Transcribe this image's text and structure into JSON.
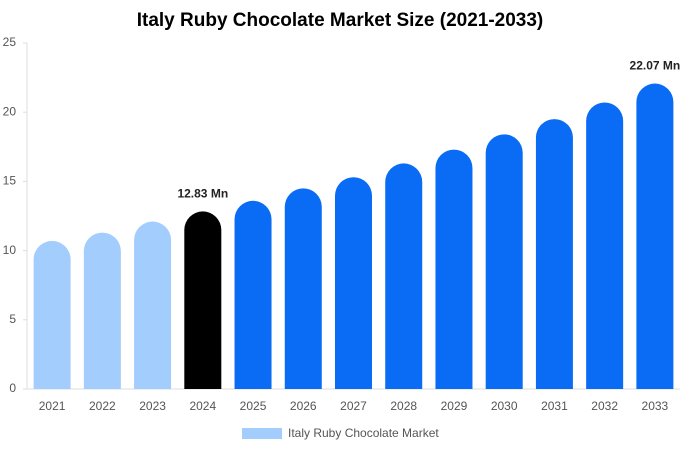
{
  "chart_data": {
    "type": "bar",
    "title": "Italy Ruby Chocolate Market Size (2021-2033)",
    "categories": [
      "2021",
      "2022",
      "2023",
      "2024",
      "2025",
      "2026",
      "2027",
      "2028",
      "2029",
      "2030",
      "2031",
      "2032",
      "2033"
    ],
    "series": [
      {
        "name": "Italy Ruby Chocolate Market",
        "color": "#a3cdfd",
        "values": [
          10.7,
          11.3,
          12.1,
          12.83,
          13.6,
          14.5,
          15.3,
          16.3,
          17.3,
          18.4,
          19.5,
          20.7,
          22.07
        ],
        "value_labels": [
          null,
          null,
          null,
          "12.83 Mn",
          null,
          null,
          null,
          null,
          null,
          null,
          null,
          null,
          "22.07 Mn"
        ],
        "colors": [
          "#a3cdfd",
          "#a3cdfd",
          "#a3cdfd",
          "#000000",
          "#0a6cf5",
          "#0a6cf5",
          "#0a6cf5",
          "#0a6cf5",
          "#0a6cf5",
          "#0a6cf5",
          "#0a6cf5",
          "#0a6cf5",
          "#0a6cf5"
        ]
      }
    ],
    "ylim": [
      0,
      25
    ],
    "yticks": [
      0,
      5,
      10,
      15,
      20,
      25
    ],
    "grid": false,
    "legend": "bottom"
  }
}
